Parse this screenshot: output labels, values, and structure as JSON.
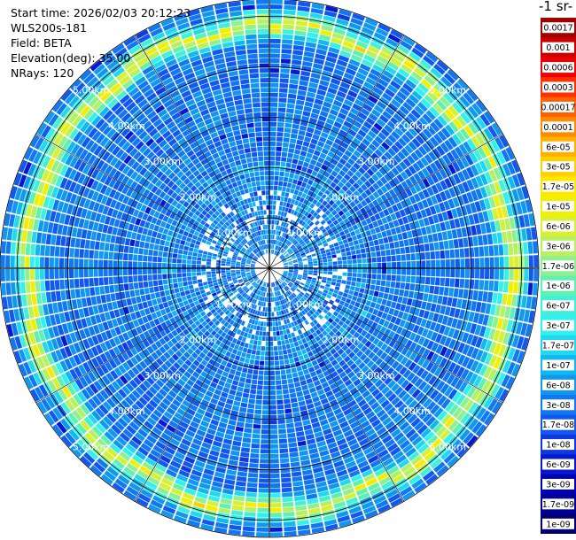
{
  "info": {
    "start_time": "Start time: 2026/02/03 20:12:23",
    "instrument": "WLS200s-181",
    "field": "Field: BETA",
    "elevation": "Elevation(deg): 35.00",
    "nrays": "NRays: 120"
  },
  "colorbar": {
    "title": "-1 sr-",
    "labels": [
      "0.0017",
      "0.001",
      "0.0006",
      "0.0003",
      "0.00017",
      "0.0001",
      "6e-05",
      "3e-05",
      "1.7e-05",
      "1e-05",
      "6e-06",
      "3e-06",
      "1.7e-06",
      "1e-06",
      "6e-07",
      "3e-07",
      "1.7e-07",
      "1e-07",
      "6e-08",
      "3e-08",
      "1.7e-08",
      "1e-08",
      "6e-09",
      "3e-09",
      "1.7e-09",
      "1e-09"
    ],
    "colors": [
      "#a00000",
      "#c80000",
      "#f00000",
      "#ff3000",
      "#ff6000",
      "#ff8c00",
      "#ffb000",
      "#ffd000",
      "#ffe800",
      "#f0f000",
      "#d8f030",
      "#b8f060",
      "#90f090",
      "#60f0b0",
      "#40f0d8",
      "#30f0f0",
      "#20d8f0",
      "#10b8f0",
      "#1098f0",
      "#1078f0",
      "#1058f0",
      "#1038e0",
      "#0818d0",
      "#0000b8",
      "#000098",
      "#000070"
    ]
  },
  "range_labels": [
    "1.00km",
    "2.00km",
    "3.00km",
    "4.00km",
    "5.00km"
  ],
  "chart_data": {
    "type": "heatmap",
    "subtype": "polar PPI scan",
    "title": "",
    "field": "BETA",
    "unit_label": "-1 sr-",
    "elevation_deg": 35.0,
    "n_rays": 120,
    "range_km": [
      0,
      5.5
    ],
    "range_rings_km": [
      1,
      2,
      3,
      4,
      5
    ],
    "color_scale": "log",
    "value_range": [
      1e-09,
      0.0017
    ],
    "dominant_value_inner": 3e-08,
    "ring_band_value_km_4.5_5.5": 1e-05,
    "grid": true
  }
}
